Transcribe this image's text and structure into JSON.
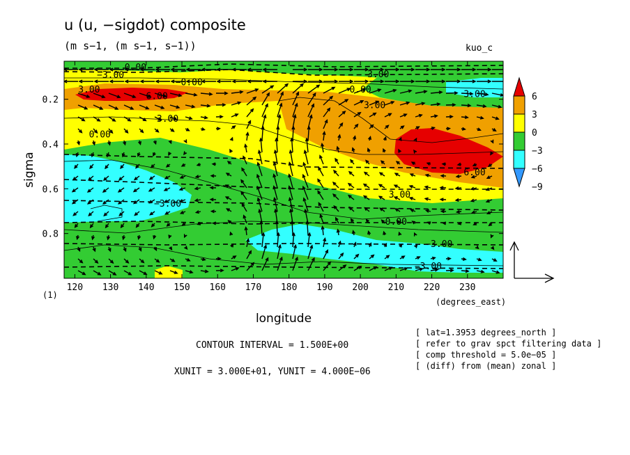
{
  "header": {
    "title": "u (u, −sigdot) composite",
    "subtitle": "(m s−1, (m s−1, s−1))",
    "corner_label": "kuo_c"
  },
  "chart_data": {
    "type": "heatmap",
    "title": "u (u, −sigdot) composite",
    "xlabel": "longitude",
    "xunit_label": "(degrees_east)",
    "ylabel": "sigma",
    "xlim": [
      117,
      240
    ],
    "ylim": [
      1.0,
      0.03
    ],
    "x_ticks": [
      "120",
      "130",
      "140",
      "150",
      "160",
      "170",
      "180",
      "190",
      "200",
      "210",
      "220",
      "230"
    ],
    "y_ticks": [
      "0.2",
      "0.4",
      "0.6",
      "0.8"
    ],
    "y_tick_values": [
      0.2,
      0.4,
      0.6,
      0.8
    ],
    "x_tick_values": [
      120,
      130,
      140,
      150,
      160,
      170,
      180,
      190,
      200,
      210,
      220,
      230
    ],
    "level_marker": "(1)",
    "colorbar": {
      "labels": [
        "6",
        "3",
        "0",
        "−3",
        "−6",
        "−9"
      ],
      "bands": [
        {
          "min": 6,
          "color": "#e60000"
        },
        {
          "min": 3,
          "color": "#f0a000"
        },
        {
          "min": 0,
          "color": "#ffff00"
        },
        {
          "min": -3,
          "color": "#33cc33"
        },
        {
          "min": -6,
          "color": "#33ffff"
        },
        {
          "min": -9,
          "color": "#3399ff"
        }
      ]
    },
    "contour_labels": [
      {
        "text": "0.00",
        "x": 137,
        "y": 0.07
      },
      {
        "text": "−3.00",
        "x": 130,
        "y": 0.105
      },
      {
        "text": "3.00",
        "x": 205,
        "y": 0.102
      },
      {
        "text": "−0.00",
        "x": 152,
        "y": 0.138
      },
      {
        "text": "3.00",
        "x": 124,
        "y": 0.17
      },
      {
        "text": "6.00",
        "x": 143,
        "y": 0.2
      },
      {
        "text": "0.00",
        "x": 200,
        "y": 0.17
      },
      {
        "text": "3.00",
        "x": 232,
        "y": 0.19
      },
      {
        "text": "3.00",
        "x": 204,
        "y": 0.24
      },
      {
        "text": "3.00",
        "x": 146,
        "y": 0.3
      },
      {
        "text": "0.00",
        "x": 127,
        "y": 0.37
      },
      {
        "text": "6.00",
        "x": 232,
        "y": 0.54
      },
      {
        "text": "3.00",
        "x": 211,
        "y": 0.64
      },
      {
        "text": "−3.00",
        "x": 146,
        "y": 0.68
      },
      {
        "text": "0.00",
        "x": 210,
        "y": 0.76
      },
      {
        "text": "−3.00",
        "x": 222,
        "y": 0.86
      },
      {
        "text": "−3.00",
        "x": 219,
        "y": 0.96
      }
    ],
    "vector_reference": {
      "xunit": "3.000E+01",
      "yunit": "4.000E−06"
    }
  },
  "footer": {
    "contour_interval": "CONTOUR INTERVAL = 1.500E+00",
    "units": "XUNIT = 3.000E+01, YUNIT = 4.000E−06",
    "notes": [
      "[ lat=1.3953 degrees_north ]",
      "[ refer to grav spct filtering data ]",
      "[ comp threshold = 5.0e−05 ]",
      "[ (diff) from (mean) zonal ]"
    ]
  }
}
